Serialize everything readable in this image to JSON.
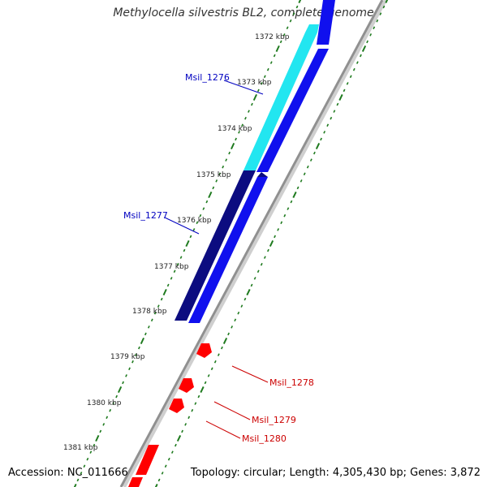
{
  "title": "Methylocella silvestris BL2, complete genome",
  "accession": "Accession: NC_011666",
  "topology": "Topology: circular; Length: 4,305,430 bp; Genes: 3,872",
  "colors": {
    "backbone": "#909090",
    "backbone_shadow": "#cfcfcf",
    "tick": "#1e7a1e",
    "cyan_gene": "#22e6f0",
    "navy_gene": "#0c0c80",
    "blue_gene": "#1010ee",
    "red_gene": "#ff0000",
    "blue_label": "#0000c0",
    "red_label": "#cc0000"
  },
  "scale_labels": [
    "1372 kbp",
    "1373 kbp",
    "1374 kbp",
    "1375 kbp",
    "1376 kbp",
    "1377 kbp",
    "1378 kbp",
    "1379 kbp",
    "1380 kbp",
    "1381 kbp"
  ],
  "gene_labels": [
    {
      "name": "Msil_1276",
      "color": "blue"
    },
    {
      "name": "Msil_1277",
      "color": "blue"
    },
    {
      "name": "Msil_1278",
      "color": "red"
    },
    {
      "name": "Msil_1279",
      "color": "red"
    },
    {
      "name": "Msil_1280",
      "color": "red"
    }
  ]
}
